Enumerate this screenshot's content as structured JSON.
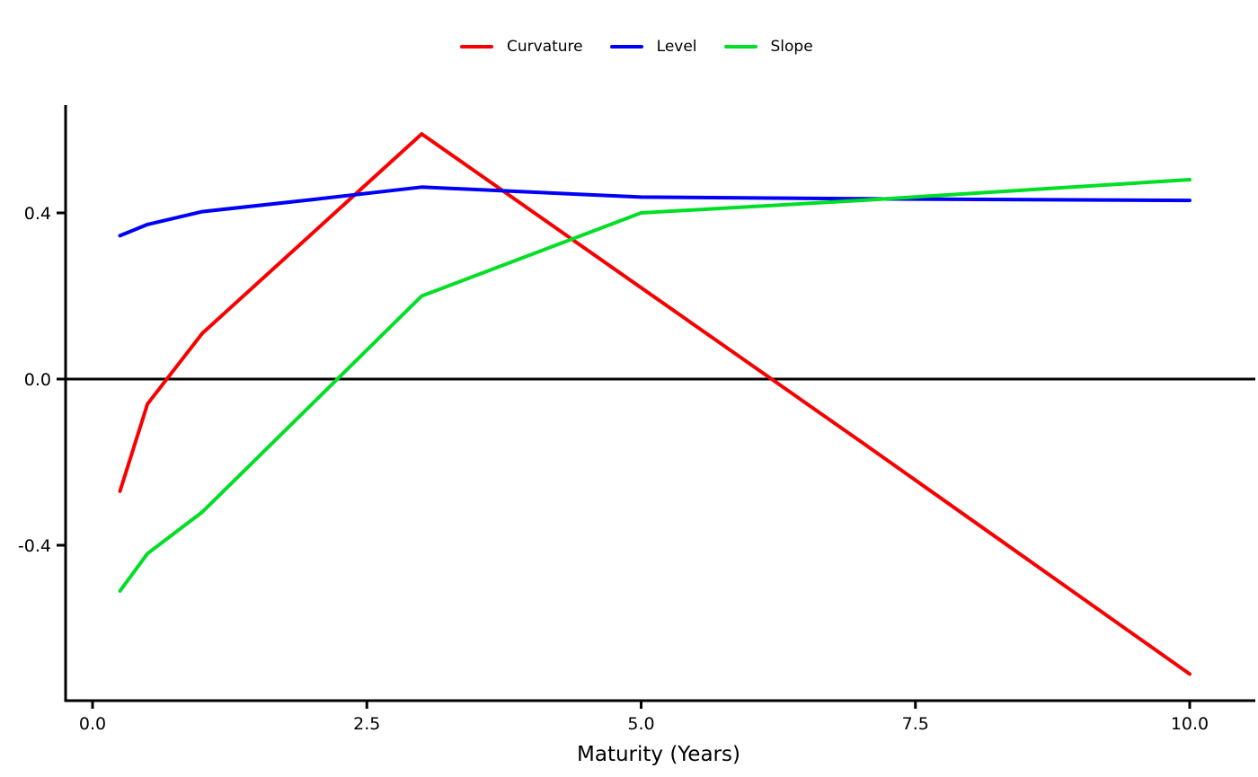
{
  "chart_data": {
    "type": "line",
    "title": "",
    "xlabel": "Maturity (Years)",
    "ylabel": "",
    "x": [
      0.25,
      0.5,
      1,
      2,
      3,
      5,
      7,
      10
    ],
    "series": [
      {
        "name": "Curvature",
        "color": "#f80000",
        "values": [
          -0.27,
          -0.06,
          0.11,
          0.35,
          0.59,
          0.22,
          -0.15,
          -0.71
        ]
      },
      {
        "name": "Level",
        "color": "#0000f8",
        "values": [
          0.345,
          0.372,
          0.403,
          0.432,
          0.462,
          0.438,
          0.434,
          0.43
        ]
      },
      {
        "name": "Slope",
        "color": "#00df25",
        "values": [
          -0.51,
          -0.42,
          -0.32,
          -0.06,
          0.2,
          0.4,
          0.43,
          0.48
        ]
      }
    ],
    "x_ticks": [
      0.0,
      2.5,
      5.0,
      7.5,
      10.0
    ],
    "x_tick_labels": [
      "0.0",
      "2.5",
      "5.0",
      "7.5",
      "10.0"
    ],
    "y_ticks": [
      0.4,
      0.0,
      -0.4
    ],
    "y_tick_labels": [
      "0.4",
      "0.0",
      "-0.4"
    ],
    "xlim": [
      -0.25,
      10.6
    ],
    "ylim": [
      -0.77,
      0.66
    ],
    "grid": false,
    "zero_line_y": 0.0,
    "legend_position": "top-center",
    "legend": [
      "Curvature",
      "Level",
      "Slope"
    ],
    "axis_color": "#000000",
    "background_color": "#ffffff"
  }
}
